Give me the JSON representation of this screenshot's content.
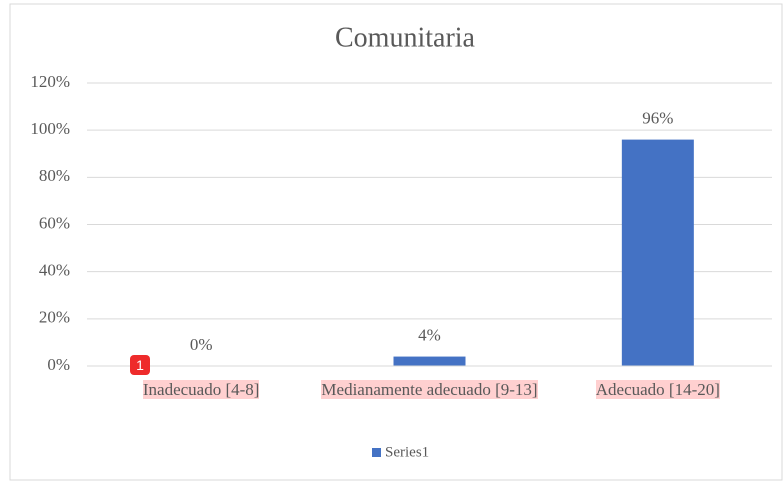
{
  "chart_data": {
    "type": "bar",
    "title": "Comunitaria",
    "categories": [
      "Inadecuado  [4-8]",
      "Medianamente adecuado  [9-13]",
      "Adecuado  [14-20]"
    ],
    "series": [
      {
        "name": "Series1",
        "color": "#4472c4",
        "values": [
          0,
          4,
          96
        ],
        "value_labels": [
          "0%",
          "4%",
          "96%"
        ]
      }
    ],
    "ylim": [
      0,
      120
    ],
    "yticks": [
      {
        "value": 0,
        "label": "0%"
      },
      {
        "value": 20,
        "label": "20%"
      },
      {
        "value": 40,
        "label": "40%"
      },
      {
        "value": 60,
        "label": "60%"
      },
      {
        "value": 80,
        "label": "80%"
      },
      {
        "value": 100,
        "label": "100%"
      },
      {
        "value": 120,
        "label": "120%"
      }
    ],
    "grid": true,
    "legend": "bottom",
    "annotations": [
      "1"
    ]
  }
}
